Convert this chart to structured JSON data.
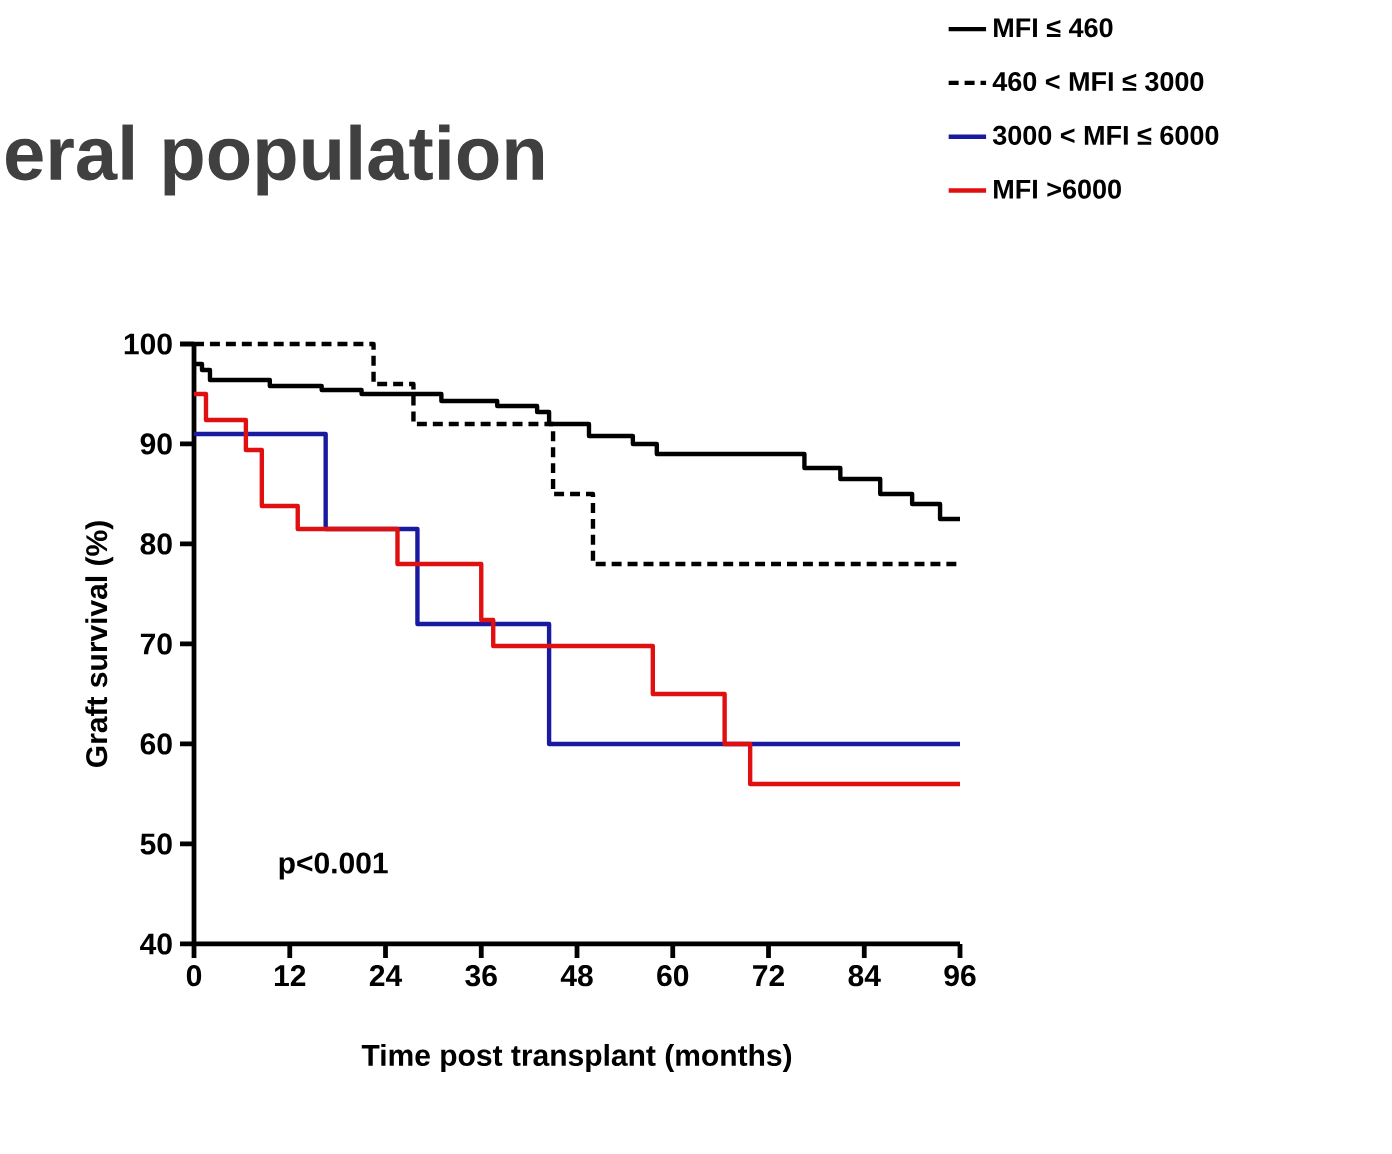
{
  "chart_data": {
    "type": "step",
    "title": "eral population",
    "xlabel": "Time post transplant (months)",
    "ylabel": "Graft survival (%)",
    "annotations": [
      "p<0.001"
    ],
    "xlim": [
      0,
      96
    ],
    "ylim": [
      40,
      100
    ],
    "xticks": [
      0,
      12,
      24,
      36,
      48,
      60,
      72,
      84,
      96
    ],
    "yticks": [
      40,
      50,
      60,
      70,
      80,
      90,
      100
    ],
    "legend": "top right",
    "marker": "none",
    "grid": false,
    "series": [
      {
        "name": "MFI ≤ 460",
        "color": "#000000",
        "line_style": "solid",
        "x": [
          0,
          1,
          2,
          9.5,
          16,
          21,
          31,
          38,
          43,
          44.5,
          49.5,
          55,
          58,
          76.5,
          81,
          86,
          90,
          93.5,
          96
        ],
        "values": [
          98,
          97.4,
          96.4,
          95.8,
          95.4,
          95,
          94.3,
          93.8,
          93.2,
          92,
          90.8,
          90,
          89,
          87.6,
          86.5,
          85,
          84,
          82.5,
          82.5
        ]
      },
      {
        "name": "460 < MFI ≤  3000",
        "color": "#000000",
        "line_style": "dashed",
        "x": [
          0,
          22.5,
          27.5,
          45,
          50,
          96
        ],
        "values": [
          100,
          96,
          92,
          85,
          78,
          78
        ]
      },
      {
        "name": "3000 < MFI ≤ 6000",
        "color": "#1a1aa0",
        "line_style": "solid",
        "x": [
          0,
          16.5,
          28,
          44.5,
          96
        ],
        "values": [
          91,
          81.5,
          72,
          60,
          60
        ]
      },
      {
        "name": "MFI >6000",
        "color": "#e01010",
        "line_style": "solid",
        "x": [
          0,
          1.5,
          6.5,
          8.5,
          13,
          25.5,
          36,
          37.5,
          57.5,
          66.5,
          69.7,
          96
        ],
        "values": [
          95,
          92.4,
          89.4,
          83.8,
          81.5,
          78,
          72.4,
          69.8,
          65,
          60,
          56,
          56
        ]
      }
    ]
  }
}
